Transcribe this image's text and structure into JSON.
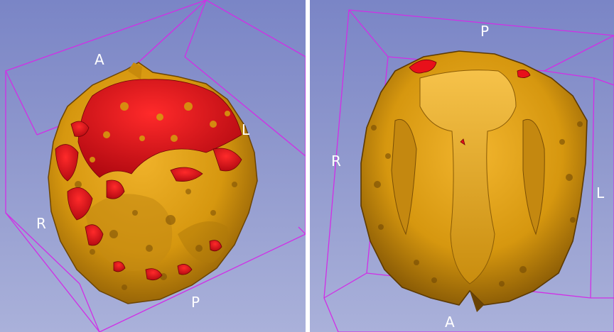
{
  "views": [
    {
      "name": "left-3d-view",
      "orientation_labels": {
        "anterior": "A",
        "posterior": "P",
        "right": "R",
        "left": "L"
      }
    },
    {
      "name": "right-3d-view",
      "orientation_labels": {
        "anterior": "A",
        "posterior": "P",
        "right": "R",
        "left": "L"
      }
    }
  ],
  "colors": {
    "background_top": "#7a85c6",
    "background_bottom": "#aab1da",
    "bounding_box": "#d12ee6",
    "segment_orange": "#d6970f",
    "segment_red": "#e8101a",
    "label_text": "#ffffff"
  }
}
